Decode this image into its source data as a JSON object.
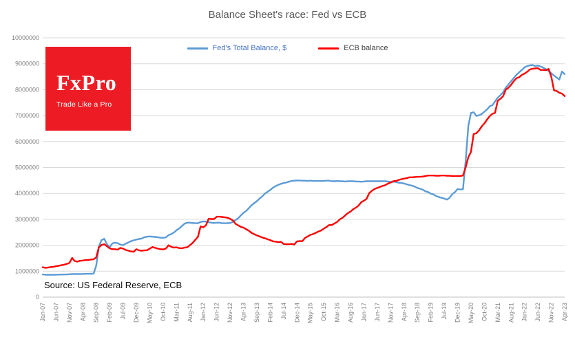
{
  "chart_data": {
    "type": "line",
    "title": "Balance Sheet's race: Fed vs ECB",
    "xlabel": "",
    "ylabel": "",
    "ylim": [
      0,
      10000000
    ],
    "grid": "horizontal",
    "legend_position": "top",
    "y_tick_labels": [
      "0",
      "1000000",
      "2000000",
      "3000000",
      "4000000",
      "5000000",
      "6000000",
      "7000000",
      "8000000",
      "9000000",
      "10000000"
    ],
    "x_tick_step": 5,
    "x_tick_labels": [
      "Jan-07",
      "Jun-07",
      "Nov-07",
      "Apr-08",
      "Sep-08",
      "Feb-09",
      "Jul-09",
      "Dec-09",
      "May-10",
      "Oct-10",
      "Mar-11",
      "Aug-11",
      "Jan-12",
      "Jun-12",
      "Nov-12",
      "Apr-13",
      "Sep-13",
      "Feb-14",
      "Jul-14",
      "Dec-14",
      "May-15",
      "Oct-15",
      "Mar-16",
      "Aug-16",
      "Jan-17",
      "Jun-17",
      "Nov-17",
      "Apr-18",
      "Sep-18",
      "Feb-19",
      "Jul-19",
      "Dec-19",
      "May-20",
      "Oct-20",
      "Mar-21",
      "Aug-21",
      "Jan-22",
      "Jun-22",
      "Nov-22",
      "Apr-23"
    ],
    "x_unit": "monthly from Jan-07 to Apr-23",
    "series": [
      {
        "name": "Fed's Total Balance, $",
        "color": "#5B9BD5",
        "label_color": "#4472C4",
        "values": [
          873000,
          865000,
          862000,
          860000,
          862000,
          865000,
          868000,
          870000,
          872000,
          875000,
          880000,
          891000,
          890000,
          888000,
          890000,
          892000,
          898000,
          900000,
          902000,
          905000,
          1210000,
          1950000,
          2200000,
          2250000,
          2040000,
          1920000,
          2070000,
          2100000,
          2080000,
          2030000,
          2000000,
          2060000,
          2110000,
          2160000,
          2190000,
          2220000,
          2240000,
          2260000,
          2310000,
          2330000,
          2340000,
          2330000,
          2320000,
          2310000,
          2290000,
          2290000,
          2300000,
          2390000,
          2430000,
          2490000,
          2580000,
          2650000,
          2740000,
          2830000,
          2870000,
          2870000,
          2860000,
          2850000,
          2850000,
          2900000,
          2920000,
          2910000,
          2890000,
          2870000,
          2860000,
          2870000,
          2870000,
          2850000,
          2850000,
          2850000,
          2860000,
          2900000,
          2970000,
          3040000,
          3150000,
          3250000,
          3320000,
          3430000,
          3540000,
          3620000,
          3700000,
          3800000,
          3880000,
          3990000,
          4060000,
          4130000,
          4220000,
          4280000,
          4330000,
          4370000,
          4400000,
          4420000,
          4450000,
          4480000,
          4490000,
          4500000,
          4500000,
          4490000,
          4490000,
          4480000,
          4490000,
          4480000,
          4480000,
          4480000,
          4480000,
          4480000,
          4490000,
          4490000,
          4470000,
          4470000,
          4480000,
          4470000,
          4470000,
          4460000,
          4470000,
          4470000,
          4470000,
          4460000,
          4460000,
          4450000,
          4460000,
          4470000,
          4470000,
          4470000,
          4470000,
          4470000,
          4470000,
          4470000,
          4470000,
          4460000,
          4440000,
          4450000,
          4440000,
          4410000,
          4400000,
          4380000,
          4350000,
          4320000,
          4300000,
          4260000,
          4210000,
          4180000,
          4140000,
          4080000,
          4050000,
          3990000,
          3960000,
          3900000,
          3860000,
          3830000,
          3800000,
          3760000,
          3830000,
          3970000,
          4050000,
          4170000,
          4150000,
          4160000,
          5250000,
          6600000,
          7100000,
          7130000,
          6990000,
          7010000,
          7060000,
          7150000,
          7240000,
          7360000,
          7400000,
          7550000,
          7690000,
          7790000,
          7900000,
          8080000,
          8200000,
          8330000,
          8450000,
          8570000,
          8670000,
          8760000,
          8860000,
          8910000,
          8940000,
          8950000,
          8910000,
          8930000,
          8890000,
          8850000,
          8790000,
          8720000,
          8630000,
          8550000,
          8470000,
          8390000,
          8700000,
          8600000
        ]
      },
      {
        "name": "ECB balance",
        "color": "#FF0000",
        "label_color": "#404040",
        "values": [
          1150000,
          1130000,
          1140000,
          1160000,
          1170000,
          1190000,
          1210000,
          1230000,
          1250000,
          1280000,
          1320000,
          1510000,
          1390000,
          1370000,
          1400000,
          1410000,
          1430000,
          1430000,
          1450000,
          1460000,
          1530000,
          1920000,
          2010000,
          2040000,
          1960000,
          1880000,
          1850000,
          1850000,
          1830000,
          1900000,
          1870000,
          1820000,
          1790000,
          1760000,
          1750000,
          1850000,
          1800000,
          1790000,
          1800000,
          1810000,
          1870000,
          1930000,
          1900000,
          1870000,
          1850000,
          1840000,
          1870000,
          2000000,
          1940000,
          1910000,
          1920000,
          1890000,
          1880000,
          1910000,
          1920000,
          2000000,
          2090000,
          2210000,
          2330000,
          2730000,
          2690000,
          2770000,
          3020000,
          3010000,
          3010000,
          3100000,
          3100000,
          3090000,
          3080000,
          3060000,
          3020000,
          2960000,
          2830000,
          2770000,
          2710000,
          2680000,
          2620000,
          2560000,
          2480000,
          2430000,
          2380000,
          2340000,
          2300000,
          2270000,
          2230000,
          2200000,
          2150000,
          2140000,
          2120000,
          2130000,
          2050000,
          2040000,
          2040000,
          2050000,
          2030000,
          2150000,
          2160000,
          2160000,
          2280000,
          2340000,
          2400000,
          2430000,
          2480000,
          2530000,
          2570000,
          2640000,
          2700000,
          2780000,
          2780000,
          2840000,
          2900000,
          3000000,
          3060000,
          3150000,
          3240000,
          3300000,
          3390000,
          3450000,
          3530000,
          3660000,
          3720000,
          3790000,
          4010000,
          4100000,
          4170000,
          4210000,
          4250000,
          4290000,
          4320000,
          4380000,
          4420000,
          4470000,
          4480000,
          4520000,
          4550000,
          4570000,
          4590000,
          4620000,
          4620000,
          4630000,
          4640000,
          4640000,
          4650000,
          4670000,
          4690000,
          4690000,
          4690000,
          4680000,
          4680000,
          4690000,
          4690000,
          4680000,
          4680000,
          4670000,
          4670000,
          4670000,
          4670000,
          4690000,
          5000000,
          5400000,
          5600000,
          6290000,
          6320000,
          6430000,
          6580000,
          6700000,
          6850000,
          6980000,
          7070000,
          7110000,
          7570000,
          7650000,
          7750000,
          8000000,
          8080000,
          8190000,
          8330000,
          8440000,
          8480000,
          8570000,
          8620000,
          8690000,
          8780000,
          8810000,
          8820000,
          8830000,
          8760000,
          8760000,
          8750000,
          8800000,
          8500000,
          7980000,
          7950000,
          7880000,
          7850000,
          7750000
        ]
      }
    ]
  },
  "logo": {
    "brand": "FxPro",
    "tagline": "Trade Like a Pro",
    "background": "#ED1C24"
  },
  "source": "Source: US Federal Reserve, ECB"
}
